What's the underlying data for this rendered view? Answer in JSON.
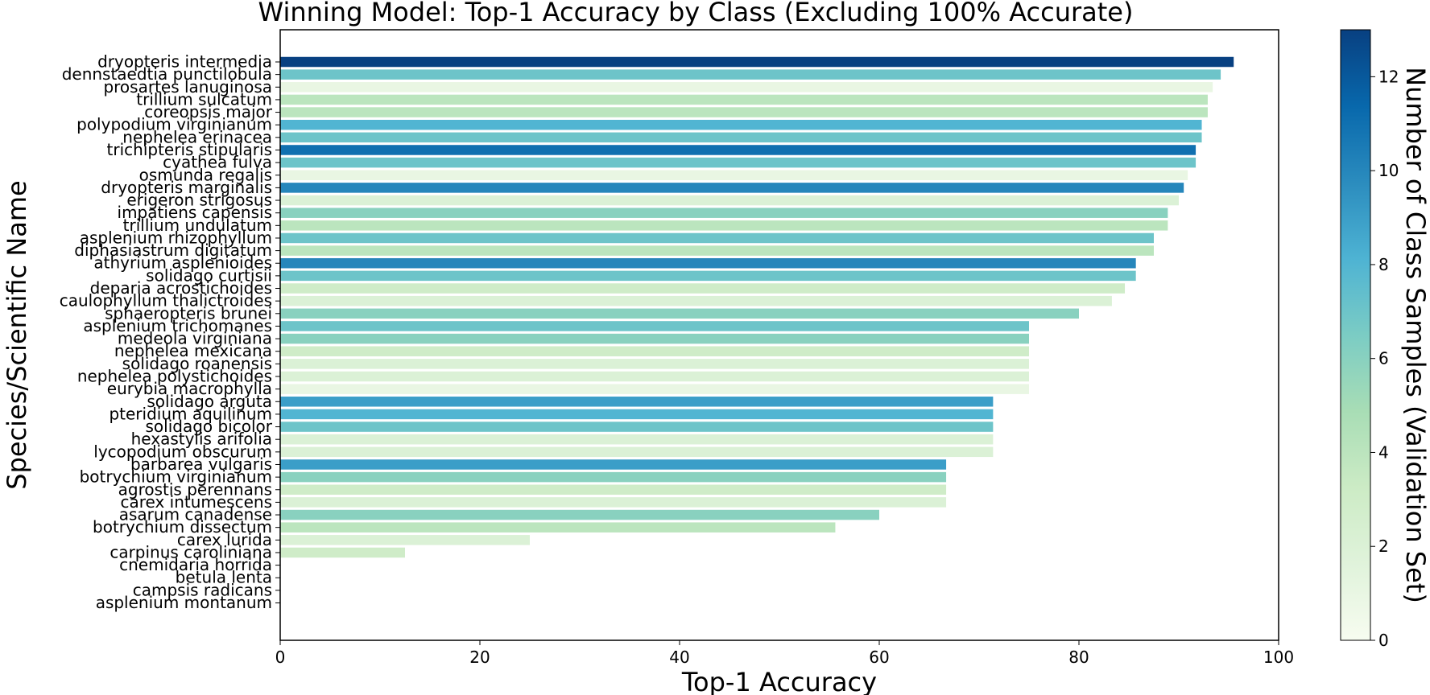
{
  "chart_data": {
    "type": "bar",
    "orientation": "horizontal",
    "title": "Winning Model: Top-1 Accuracy by Class (Excluding 100% Accurate)",
    "xlabel": "Top-1 Accuracy",
    "ylabel": "Species/Scientific Name",
    "xlim": [
      0,
      100
    ],
    "x_ticks": [
      0,
      20,
      40,
      60,
      80,
      100
    ],
    "grid": false,
    "colormap": "GnBu",
    "colorbar": {
      "label": "Number of Class Samples (Validation Set)",
      "range": [
        0,
        13
      ],
      "ticks": [
        0,
        2,
        4,
        6,
        8,
        10,
        12
      ]
    },
    "categories": [
      "dryopteris intermedia",
      "dennstaedtia punctilobula",
      "prosartes lanuginosa",
      "trillium sulcatum",
      "coreopsis major",
      "polypodium virginianum",
      "nephelea erinacea",
      "trichipteris stipularis",
      "cyathea fulva",
      "osmunda regalis",
      "dryopteris marginalis",
      "erigeron strigosus",
      "impatiens capensis",
      "trillium undulatum",
      "asplenium rhizophyllum",
      "diphasiastrum digitatum",
      "athyrium asplenioides",
      "solidago curtisii",
      "deparia acrostichoides",
      "caulophyllum thalictroides",
      "sphaeropteris brunei",
      "asplenium trichomanes",
      "medeola virginiana",
      "nephelea mexicana",
      "solidago roanensis",
      "nephelea polystichoides",
      "eurybia macrophylla",
      "solidago arguta",
      "pteridium aquilinum",
      "solidago bicolor",
      "hexastylis arifolia",
      "lycopodium obscurum",
      "barbarea vulgaris",
      "botrychium virginianum",
      "agrostis perennans",
      "carex intumescens",
      "asarum canadense",
      "botrychium dissectum",
      "carex lurida",
      "carpinus caroliniana",
      "cnemidaria horrida",
      "betula lenta",
      "campsis radicans",
      "asplenium montanum"
    ],
    "values": [
      95.5,
      94.2,
      93.4,
      92.9,
      92.9,
      92.3,
      92.3,
      91.7,
      91.7,
      90.9,
      90.5,
      90.0,
      88.9,
      88.9,
      87.5,
      87.5,
      85.7,
      85.7,
      84.6,
      83.3,
      80.0,
      75.0,
      75.0,
      75.0,
      75.0,
      75.0,
      75.0,
      71.4,
      71.4,
      71.4,
      71.4,
      71.4,
      66.7,
      66.7,
      66.7,
      66.7,
      60.0,
      55.6,
      25.0,
      12.5,
      0,
      0,
      0,
      0
    ],
    "sample_counts": [
      13,
      7,
      1,
      4,
      4,
      8,
      7,
      11,
      7,
      1,
      10,
      2,
      6,
      4,
      7,
      4,
      10,
      7,
      3,
      2,
      6,
      7,
      6,
      3,
      2,
      2,
      1,
      9,
      8,
      7,
      2,
      2,
      9,
      6,
      3,
      2,
      6,
      4,
      2,
      3,
      1,
      1,
      1,
      1
    ]
  }
}
